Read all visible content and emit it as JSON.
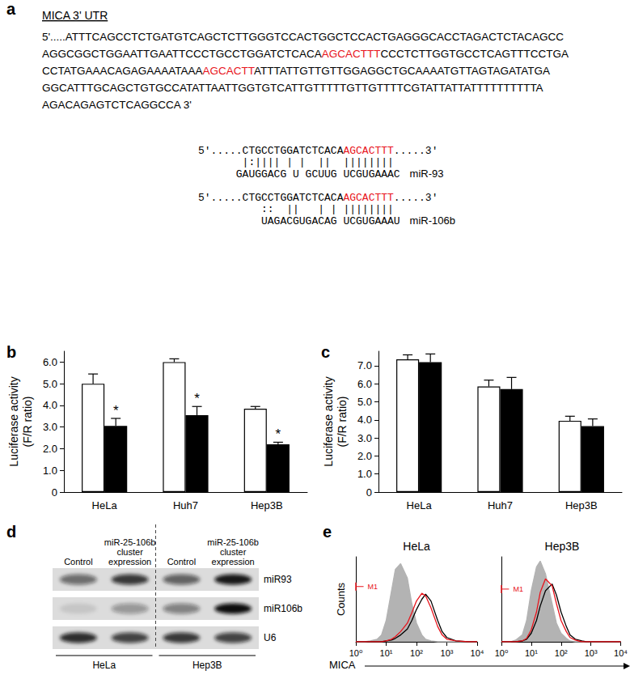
{
  "sequence_panel": {
    "panel": "a",
    "title": "MICA 3' UTR",
    "highlight_color": "#e8141c",
    "lines": [
      {
        "text": "5'.....ATTTCAGCCTCTGATGTCAGCTCTTGGGTCCACTGGCTCCACTGAGGGCACCTAGACTCTACAGCC",
        "highlight": null
      },
      {
        "text": "AGGCGGCTGGAATTGAATTCCCTGCCTGGATCTCACAAGCACTTTCCCTCTTGGTGCCTCAGTTTCCTGA",
        "highlight": "AGCACTTT"
      },
      {
        "text": "CCTATGAAACAGAGAAAATAAAAGCACTTATTTATTGTTGTTGGAGGCTGCAAAATGTTAGTAGATATGA",
        "highlight": "AGCACTT"
      },
      {
        "text": "GGCATTTGCAGCTGTGCCATATTAATTGGTGTCATTGTTTTTGTTGTTTTCGTATTATTATTTTTTTTTTA",
        "highlight": null
      },
      {
        "text": "AGACAGAGTCTCAGGCCA 3'",
        "highlight": null
      }
    ],
    "alignments": [
      {
        "target": "5'.....CTGCCTGGATCTCACAAGCACTTT.....3'",
        "highlight": "AGCACTTT",
        "pairing": "       |:|||| | |  ||  ||||||||",
        "mirna": "      GAUGGACG U GCUUG UCGUGAAAC",
        "name": "miR-93"
      },
      {
        "target": "5'.....CTGCCTGGATCTCACAAGCACTTT.....3'",
        "highlight": "AGCACTTT",
        "pairing": "          ::  ||   | | ||||||||",
        "mirna": "          UAGACGUGACAG UCGUGAAAU",
        "name": "miR-106b"
      }
    ]
  },
  "chart_data": [
    {
      "panel": "b",
      "type": "bar",
      "y_label": "Luciferase activity\n(F/R ratio)",
      "categories": [
        "HeLa",
        "Huh7",
        "Hep3B"
      ],
      "series": [
        {
          "color": "#ffffff",
          "values": [
            5.0,
            6.0,
            3.85
          ],
          "errors": [
            0.45,
            0.15,
            0.1
          ]
        },
        {
          "color": "#000000",
          "values": [
            3.05,
            3.55,
            2.2
          ],
          "errors": [
            0.35,
            0.4,
            0.1
          ],
          "annotations": [
            "*",
            "*",
            "*"
          ]
        }
      ],
      "ylim": [
        0,
        6.5
      ],
      "yticks": [
        0,
        {
          "value": 1,
          "label": "1.0"
        },
        {
          "value": 2,
          "label": "2.0"
        },
        {
          "value": 3,
          "label": "3.0"
        },
        {
          "value": 4,
          "label": "4.0"
        },
        {
          "value": 5,
          "label": "5.0"
        },
        {
          "value": 6,
          "label": "6.0"
        }
      ],
      "grid": false
    },
    {
      "panel": "c",
      "type": "bar",
      "y_label": "Luciferase activity\n(F/R ratio)",
      "categories": [
        "HeLa",
        "Huh7",
        "Hep3B"
      ],
      "series": [
        {
          "color": "#ffffff",
          "values": [
            7.35,
            5.85,
            3.95
          ],
          "errors": [
            0.25,
            0.35,
            0.25
          ]
        },
        {
          "color": "#000000",
          "values": [
            7.2,
            5.7,
            3.65
          ],
          "errors": [
            0.45,
            0.65,
            0.4
          ]
        }
      ],
      "ylim": [
        0,
        7.8
      ],
      "yticks": [
        0,
        {
          "value": 1,
          "label": "1.0"
        },
        {
          "value": 2,
          "label": "2.0"
        },
        {
          "value": 3,
          "label": "3.0"
        },
        {
          "value": 4,
          "label": "4.0"
        },
        {
          "value": 5,
          "label": "5.0"
        },
        {
          "value": 6,
          "label": "6.0"
        },
        {
          "value": 7,
          "label": "7.0"
        }
      ],
      "grid": false
    },
    {
      "panel": "e",
      "type": "line",
      "x_label": "MICA",
      "y_label": "Counts",
      "log": "x",
      "xlim": [
        1,
        10000
      ],
      "xticks": [
        {
          "value": 1,
          "label": "10⁰"
        },
        {
          "value": 10,
          "label": "10¹"
        },
        {
          "value": 100,
          "label": "10²"
        },
        {
          "value": 1000,
          "label": "10³"
        },
        {
          "value": 10000,
          "label": "10⁴"
        }
      ],
      "ylim": [
        0,
        100
      ],
      "tick_labels": "x",
      "grid": false,
      "subplots": [
        {
          "title": "HeLa",
          "gate": {
            "label": "M1",
            "x": [
              1,
              1.8
            ],
            "y": 65,
            "color": "#e8141c"
          },
          "series": [
            {
              "type": "area",
              "color": "#b3b3b3",
              "x": [
                1,
                2,
                3,
                5,
                7,
                10,
                15,
                20,
                30,
                50,
                70,
                100,
                150,
                200,
                300,
                500,
                700,
                1000,
                2000,
                5000,
                10000
              ],
              "values": [
                0,
                0,
                1,
                3,
                8,
                25,
                60,
                85,
                92,
                75,
                45,
                22,
                8,
                3,
                1,
                0,
                0,
                0,
                0,
                0,
                0
              ]
            },
            {
              "type": "line",
              "color": "#000000",
              "x": [
                1,
                2,
                3,
                5,
                7,
                10,
                15,
                20,
                30,
                50,
                70,
                100,
                150,
                200,
                300,
                500,
                700,
                1000,
                2000,
                5000,
                10000
              ],
              "values": [
                0,
                0,
                0,
                0,
                0,
                1,
                2,
                4,
                8,
                15,
                25,
                38,
                50,
                56,
                48,
                25,
                12,
                5,
                1,
                0,
                0
              ]
            },
            {
              "type": "line",
              "color": "#e8141c",
              "x": [
                1,
                2,
                3,
                5,
                7,
                10,
                15,
                20,
                30,
                50,
                70,
                100,
                150,
                200,
                300,
                500,
                700,
                1000,
                2000,
                5000,
                10000
              ],
              "values": [
                0,
                0,
                0,
                0,
                0,
                1,
                3,
                6,
                12,
                22,
                34,
                48,
                57,
                54,
                40,
                18,
                8,
                3,
                1,
                0,
                0
              ]
            }
          ]
        },
        {
          "title": "Hep3B",
          "gate": {
            "label": "M1",
            "x": [
              1,
              1.8
            ],
            "y": 62,
            "color": "#e8141c"
          },
          "series": [
            {
              "type": "area",
              "color": "#b3b3b3",
              "x": [
                1,
                2,
                3,
                5,
                7,
                10,
                15,
                20,
                30,
                50,
                70,
                100,
                150,
                200,
                300,
                500,
                700,
                1000,
                2000,
                5000,
                10000
              ],
              "values": [
                0,
                0,
                2,
                8,
                25,
                60,
                88,
                95,
                80,
                45,
                22,
                10,
                4,
                1,
                0,
                0,
                0,
                0,
                0,
                0,
                0
              ]
            },
            {
              "type": "line",
              "color": "#000000",
              "x": [
                1,
                2,
                3,
                5,
                7,
                10,
                15,
                20,
                30,
                50,
                70,
                100,
                150,
                200,
                300,
                500,
                700,
                1000,
                2000,
                5000,
                10000
              ],
              "values": [
                0,
                0,
                0,
                1,
                3,
                10,
                25,
                42,
                60,
                68,
                55,
                35,
                18,
                8,
                3,
                1,
                0,
                0,
                0,
                0,
                0
              ]
            },
            {
              "type": "line",
              "color": "#e8141c",
              "x": [
                1,
                2,
                3,
                5,
                7,
                10,
                15,
                20,
                30,
                50,
                70,
                100,
                150,
                200,
                300,
                500,
                700,
                1000,
                2000,
                5000,
                10000
              ],
              "values": [
                0,
                0,
                0,
                1,
                4,
                14,
                35,
                58,
                74,
                66,
                45,
                25,
                12,
                5,
                2,
                0,
                0,
                0,
                0,
                0,
                0
              ]
            }
          ]
        }
      ]
    }
  ],
  "blot_panel": {
    "panel": "d",
    "lanes": [
      "Control",
      "miR-25-106b\ncluster\nexpression",
      "Control",
      "miR-25-106b\ncluster\nexpression"
    ],
    "groups": [
      "HeLa",
      "Hep3B"
    ],
    "rows": [
      {
        "label": "miR93",
        "intensity": [
          0.55,
          0.8,
          0.6,
          0.95
        ]
      },
      {
        "label": "miR106b",
        "intensity": [
          0.1,
          0.35,
          0.45,
          1.0
        ]
      },
      {
        "label": "U6",
        "intensity": [
          0.85,
          0.75,
          0.8,
          0.75
        ]
      }
    ]
  }
}
